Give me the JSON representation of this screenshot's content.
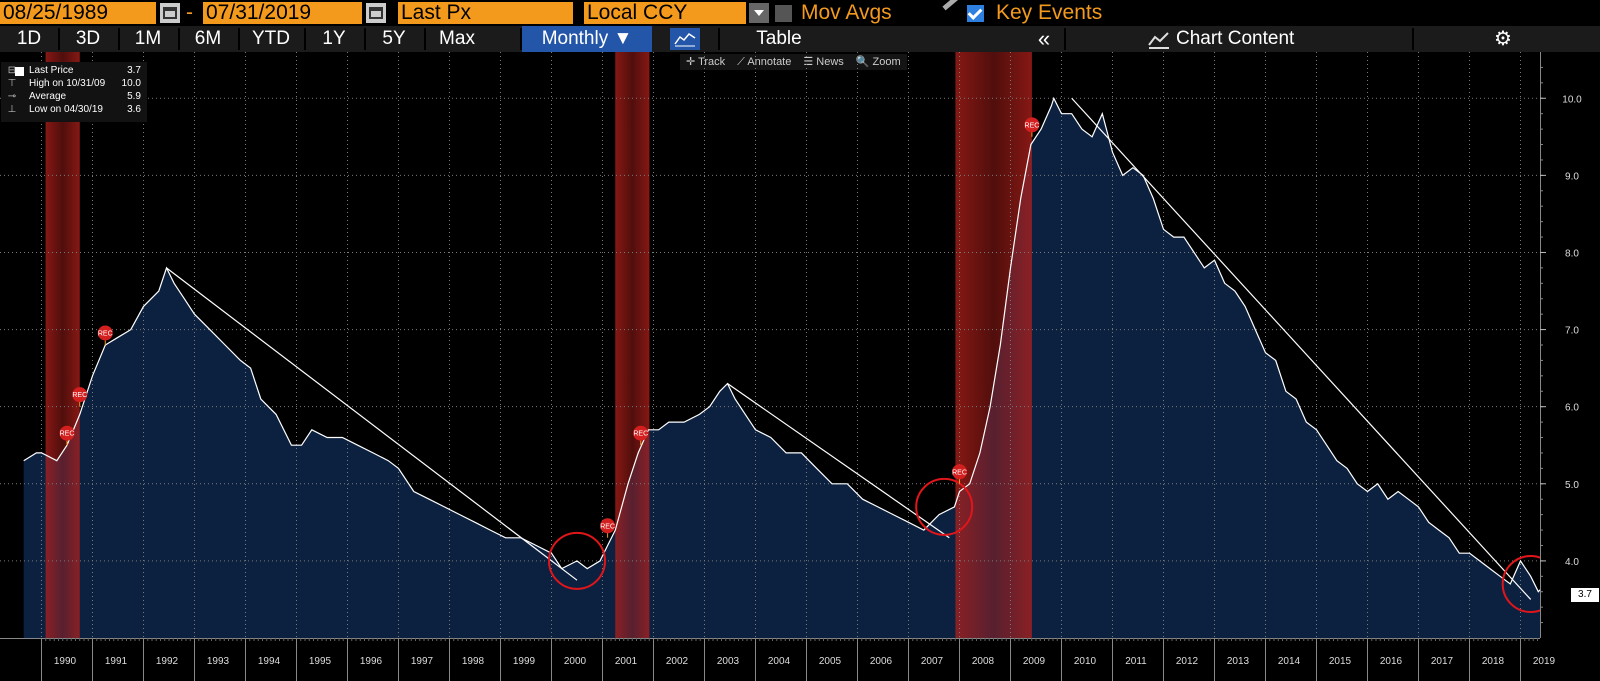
{
  "toolbar": {
    "start_date": "08/25/1989",
    "date_sep": "-",
    "end_date": "07/31/2019",
    "field": "Last Px",
    "currency": "Local CCY",
    "mov_avgs": "Mov Avgs",
    "key_events": "Key Events"
  },
  "range_tabs": [
    "1D",
    "3D",
    "1M",
    "6M",
    "YTD",
    "1Y",
    "5Y",
    "Max"
  ],
  "frequency": "Monthly ▼",
  "table_label": "Table",
  "collapse_label": "«",
  "chart_content_label": "Chart Content",
  "subtools": [
    "✛ Track",
    "⟋ Annotate",
    "☰ News",
    "🔍 Zoom"
  ],
  "legend": [
    {
      "label": "Last Price",
      "value": "3.7"
    },
    {
      "label": "High on 10/31/09",
      "value": "10.0"
    },
    {
      "label": "Average",
      "value": "5.9"
    },
    {
      "label": "Low on 04/30/19",
      "value": "3.6"
    }
  ],
  "last_value_label": "3.7",
  "event_marker_label": "REC",
  "colors": {
    "accent": "#f39a1d",
    "area_fill": "#0c2040",
    "line": "#ffffff",
    "recession": "#b3201b",
    "circle": "#e0161a"
  },
  "chart_data": {
    "type": "area",
    "y_range": [
      3.0,
      10.6
    ],
    "y_ticks": [
      4.0,
      5.0,
      6.0,
      7.0,
      8.0,
      9.0,
      10.0
    ],
    "x_ticks": [
      "1990",
      "1991",
      "1992",
      "1993",
      "1994",
      "1995",
      "1996",
      "1997",
      "1998",
      "1999",
      "2000",
      "2001",
      "2002",
      "2003",
      "2004",
      "2005",
      "2006",
      "2007",
      "2008",
      "2009",
      "2010",
      "2011",
      "2012",
      "2013",
      "2014",
      "2015",
      "2016",
      "2017",
      "2018",
      "2019"
    ],
    "grid": true,
    "series": [
      {
        "points": [
          [
            1989.65,
            5.3
          ],
          [
            1989.9,
            5.4
          ],
          [
            1990.0,
            5.4
          ],
          [
            1990.3,
            5.3
          ],
          [
            1990.5,
            5.5
          ],
          [
            1990.75,
            5.9
          ],
          [
            1990.9,
            6.2
          ],
          [
            1991.0,
            6.4
          ],
          [
            1991.25,
            6.8
          ],
          [
            1991.5,
            6.9
          ],
          [
            1991.75,
            7.0
          ],
          [
            1992.0,
            7.3
          ],
          [
            1992.3,
            7.5
          ],
          [
            1992.45,
            7.8
          ],
          [
            1992.6,
            7.6
          ],
          [
            1992.8,
            7.4
          ],
          [
            1993.0,
            7.2
          ],
          [
            1993.3,
            7.0
          ],
          [
            1993.6,
            6.8
          ],
          [
            1993.9,
            6.6
          ],
          [
            1994.1,
            6.5
          ],
          [
            1994.3,
            6.1
          ],
          [
            1994.6,
            5.9
          ],
          [
            1994.9,
            5.5
          ],
          [
            1995.1,
            5.5
          ],
          [
            1995.3,
            5.7
          ],
          [
            1995.6,
            5.6
          ],
          [
            1995.9,
            5.6
          ],
          [
            1996.2,
            5.5
          ],
          [
            1996.5,
            5.4
          ],
          [
            1996.8,
            5.3
          ],
          [
            1997.0,
            5.2
          ],
          [
            1997.3,
            4.9
          ],
          [
            1997.6,
            4.8
          ],
          [
            1997.9,
            4.7
          ],
          [
            1998.2,
            4.6
          ],
          [
            1998.5,
            4.5
          ],
          [
            1998.8,
            4.4
          ],
          [
            1999.1,
            4.3
          ],
          [
            1999.4,
            4.3
          ],
          [
            1999.7,
            4.2
          ],
          [
            2000.0,
            4.1
          ],
          [
            2000.2,
            3.9
          ],
          [
            2000.5,
            4.0
          ],
          [
            2000.7,
            3.9
          ],
          [
            2000.95,
            4.0
          ],
          [
            2001.1,
            4.2
          ],
          [
            2001.25,
            4.4
          ],
          [
            2001.5,
            5.0
          ],
          [
            2001.7,
            5.4
          ],
          [
            2001.9,
            5.7
          ],
          [
            2002.1,
            5.7
          ],
          [
            2002.3,
            5.8
          ],
          [
            2002.6,
            5.8
          ],
          [
            2002.9,
            5.9
          ],
          [
            2003.1,
            6.0
          ],
          [
            2003.3,
            6.2
          ],
          [
            2003.45,
            6.3
          ],
          [
            2003.6,
            6.1
          ],
          [
            2003.8,
            5.9
          ],
          [
            2004.0,
            5.7
          ],
          [
            2004.3,
            5.6
          ],
          [
            2004.6,
            5.4
          ],
          [
            2004.9,
            5.4
          ],
          [
            2005.2,
            5.2
          ],
          [
            2005.5,
            5.0
          ],
          [
            2005.8,
            5.0
          ],
          [
            2006.1,
            4.8
          ],
          [
            2006.4,
            4.7
          ],
          [
            2006.7,
            4.6
          ],
          [
            2007.0,
            4.5
          ],
          [
            2007.3,
            4.4
          ],
          [
            2007.6,
            4.6
          ],
          [
            2007.9,
            4.7
          ],
          [
            2008.0,
            4.9
          ],
          [
            2008.2,
            5.0
          ],
          [
            2008.4,
            5.4
          ],
          [
            2008.6,
            6.0
          ],
          [
            2008.8,
            6.8
          ],
          [
            2009.0,
            7.8
          ],
          [
            2009.2,
            8.7
          ],
          [
            2009.4,
            9.4
          ],
          [
            2009.6,
            9.6
          ],
          [
            2009.8,
            9.9
          ],
          [
            2009.85,
            10.0
          ],
          [
            2010.0,
            9.8
          ],
          [
            2010.2,
            9.8
          ],
          [
            2010.4,
            9.6
          ],
          [
            2010.6,
            9.5
          ],
          [
            2010.8,
            9.8
          ],
          [
            2011.0,
            9.3
          ],
          [
            2011.2,
            9.0
          ],
          [
            2011.4,
            9.1
          ],
          [
            2011.6,
            9.0
          ],
          [
            2011.8,
            8.7
          ],
          [
            2012.0,
            8.3
          ],
          [
            2012.2,
            8.2
          ],
          [
            2012.4,
            8.2
          ],
          [
            2012.6,
            8.0
          ],
          [
            2012.8,
            7.8
          ],
          [
            2013.0,
            7.9
          ],
          [
            2013.2,
            7.6
          ],
          [
            2013.4,
            7.5
          ],
          [
            2013.6,
            7.3
          ],
          [
            2013.8,
            7.0
          ],
          [
            2014.0,
            6.7
          ],
          [
            2014.2,
            6.6
          ],
          [
            2014.4,
            6.2
          ],
          [
            2014.6,
            6.1
          ],
          [
            2014.8,
            5.8
          ],
          [
            2015.0,
            5.7
          ],
          [
            2015.2,
            5.5
          ],
          [
            2015.4,
            5.3
          ],
          [
            2015.6,
            5.2
          ],
          [
            2015.8,
            5.0
          ],
          [
            2016.0,
            4.9
          ],
          [
            2016.2,
            5.0
          ],
          [
            2016.4,
            4.8
          ],
          [
            2016.6,
            4.9
          ],
          [
            2016.8,
            4.8
          ],
          [
            2017.0,
            4.7
          ],
          [
            2017.2,
            4.5
          ],
          [
            2017.4,
            4.4
          ],
          [
            2017.6,
            4.3
          ],
          [
            2017.8,
            4.1
          ],
          [
            2018.0,
            4.1
          ],
          [
            2018.2,
            4.0
          ],
          [
            2018.4,
            3.9
          ],
          [
            2018.6,
            3.8
          ],
          [
            2018.8,
            3.7
          ],
          [
            2019.0,
            4.0
          ],
          [
            2019.2,
            3.8
          ],
          [
            2019.35,
            3.6
          ],
          [
            2019.5,
            3.7
          ],
          [
            2019.6,
            3.7
          ]
        ]
      }
    ],
    "recessions": [
      [
        1990.08,
        1990.75
      ],
      [
        2001.25,
        2001.92
      ],
      [
        2007.92,
        2009.42
      ]
    ],
    "event_markers": [
      [
        1990.5,
        5.5
      ],
      [
        1990.75,
        6.0
      ],
      [
        1991.25,
        6.8
      ],
      [
        2001.1,
        4.3
      ],
      [
        2001.75,
        5.5
      ],
      [
        2008.0,
        5.0
      ],
      [
        2009.42,
        9.5
      ]
    ],
    "trend_lines": [
      [
        [
          1992.45,
          7.8
        ],
        [
          2000.5,
          3.75
        ]
      ],
      [
        [
          2003.45,
          6.3
        ],
        [
          2007.8,
          4.3
        ]
      ],
      [
        [
          2010.2,
          10.0
        ],
        [
          2019.2,
          3.5
        ]
      ]
    ],
    "circles": [
      [
        2000.5,
        4.0
      ],
      [
        2007.7,
        4.7
      ],
      [
        2019.2,
        3.7
      ]
    ]
  }
}
